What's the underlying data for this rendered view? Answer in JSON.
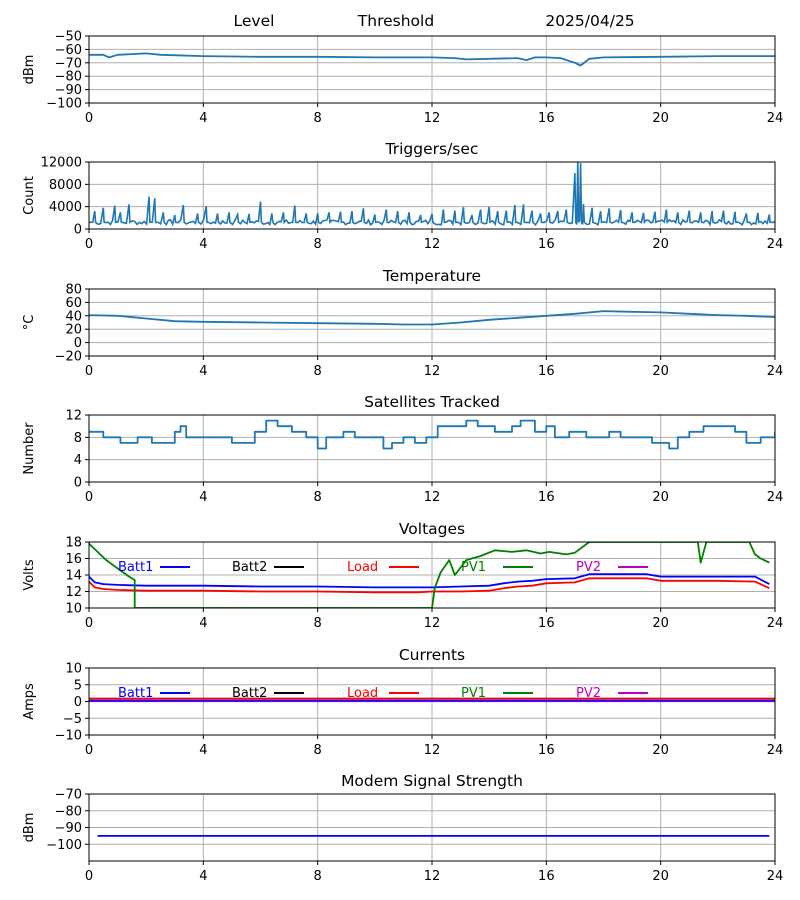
{
  "header": {
    "left": "Level",
    "middle": "Threshold",
    "right": "2025/04/25"
  },
  "colors": {
    "default_line": "#1f77b4",
    "grid": "#b0b0b0",
    "Batt1": "#0000ff",
    "Batt2": "#000000",
    "Load": "#ff0000",
    "PV1": "#008000",
    "PV2": "#bf00bf"
  },
  "chart_data": [
    {
      "id": "level",
      "type": "line",
      "title": "",
      "ylabel": "dBm",
      "xlim": [
        0,
        24
      ],
      "ylim": [
        -100,
        -50
      ],
      "xticks": [
        0,
        4,
        8,
        12,
        16,
        20,
        24
      ],
      "yticks": [
        -100,
        -90,
        -80,
        -70,
        -60,
        -50
      ],
      "series": [
        {
          "color_key": "default_line",
          "x": [
            0,
            0.5,
            0.7,
            1.0,
            2.0,
            2.5,
            4,
            6,
            8,
            10,
            12,
            12.8,
            13.2,
            14,
            15,
            15.3,
            15.6,
            16,
            16.5,
            17.0,
            17.2,
            17.5,
            18,
            20,
            22,
            24
          ],
          "y": [
            -64,
            -64,
            -66,
            -64,
            -63,
            -64,
            -65,
            -65.5,
            -65.5,
            -66,
            -66,
            -66.5,
            -67.5,
            -67,
            -66.5,
            -68,
            -66,
            -66,
            -66.5,
            -70,
            -72,
            -67,
            -66,
            -65.5,
            -65,
            -65
          ]
        }
      ]
    },
    {
      "id": "triggers",
      "type": "line",
      "title": "Triggers/sec",
      "ylabel": "Count",
      "xlim": [
        0,
        24
      ],
      "ylim": [
        0,
        12000
      ],
      "xticks": [
        0,
        4,
        8,
        12,
        16,
        20,
        24
      ],
      "yticks": [
        0,
        4000,
        8000,
        12000
      ],
      "baseline": 1200,
      "series": [
        {
          "color_key": "default_line",
          "x": [
            0.2,
            0.5,
            0.9,
            1.1,
            1.4,
            2.1,
            2.3,
            2.6,
            3.0,
            3.3,
            3.8,
            4.1,
            4.5,
            4.9,
            5.2,
            5.6,
            6.0,
            6.4,
            6.8,
            7.2,
            7.6,
            8.0,
            8.4,
            8.8,
            9.2,
            9.6,
            10.0,
            10.4,
            10.8,
            11.2,
            11.6,
            12.0,
            12.4,
            12.8,
            13.1,
            13.4,
            13.7,
            14.0,
            14.3,
            14.6,
            14.9,
            15.2,
            15.5,
            15.8,
            16.1,
            16.4,
            16.7,
            17.0,
            17.1,
            17.2,
            17.3,
            17.6,
            17.9,
            18.2,
            18.6,
            19.0,
            19.4,
            19.8,
            20.2,
            20.6,
            21.0,
            21.4,
            21.8,
            22.2,
            22.6,
            23.0,
            23.4,
            23.8
          ],
          "y": [
            3200,
            3800,
            4200,
            3000,
            4400,
            5800,
            5500,
            3000,
            2500,
            4300,
            2800,
            4100,
            2800,
            3000,
            2600,
            2700,
            4900,
            2800,
            3000,
            4200,
            2800,
            2800,
            3000,
            3100,
            3200,
            3700,
            2600,
            3500,
            3200,
            3000,
            2500,
            2700,
            3500,
            3300,
            3900,
            2500,
            3500,
            4000,
            3200,
            3300,
            4300,
            4400,
            3300,
            2800,
            3000,
            3200,
            3500,
            10000,
            12500,
            11800,
            4500,
            3800,
            3200,
            3700,
            3400,
            3000,
            2900,
            3100,
            3500,
            3000,
            3300,
            3000,
            3200,
            3300,
            3100,
            2800,
            2900,
            2600
          ]
        }
      ]
    },
    {
      "id": "temperature",
      "type": "line",
      "title": "Temperature",
      "ylabel": "°C",
      "xlim": [
        0,
        24
      ],
      "ylim": [
        -20,
        80
      ],
      "xticks": [
        0,
        4,
        8,
        12,
        16,
        20,
        24
      ],
      "yticks": [
        -20,
        0,
        20,
        40,
        60,
        80
      ],
      "series": [
        {
          "color_key": "default_line",
          "x": [
            0,
            1,
            2,
            3,
            4,
            6,
            8,
            10,
            11,
            12,
            13,
            14,
            15,
            16,
            17,
            18,
            19,
            20,
            21,
            22,
            23,
            24
          ],
          "y": [
            41,
            40,
            36,
            32,
            31,
            30,
            29,
            28,
            27,
            27,
            30,
            34,
            37,
            40,
            43,
            47,
            46,
            45,
            43,
            41,
            40,
            38
          ]
        }
      ]
    },
    {
      "id": "satellites",
      "type": "line",
      "title": "Satellites Tracked",
      "ylabel": "Number",
      "xlim": [
        0,
        24
      ],
      "ylim": [
        0,
        12
      ],
      "xticks": [
        0,
        4,
        8,
        12,
        16,
        20,
        24
      ],
      "yticks": [
        0,
        4,
        8,
        12
      ],
      "step": true,
      "series": [
        {
          "color_key": "default_line",
          "x": [
            0,
            0.5,
            1.1,
            1.7,
            2.2,
            3.0,
            3.2,
            3.4,
            4.0,
            5.0,
            5.8,
            6.2,
            6.6,
            7.1,
            7.6,
            8.0,
            8.3,
            8.9,
            9.3,
            10.0,
            10.3,
            10.6,
            11.0,
            11.4,
            11.8,
            12.2,
            12.7,
            13.2,
            13.6,
            14.2,
            14.8,
            15.1,
            15.6,
            16.0,
            16.3,
            16.8,
            17.4,
            18.2,
            18.6,
            19.0,
            19.7,
            20.3,
            20.6,
            21.0,
            21.5,
            22.1,
            22.6,
            23.0,
            23.5,
            24.0
          ],
          "y": [
            9,
            8,
            7,
            8,
            7,
            9,
            10,
            8,
            8,
            7,
            9,
            11,
            10,
            9,
            8,
            6,
            8,
            9,
            8,
            8,
            6,
            7,
            8,
            7,
            8,
            10,
            10,
            11,
            10,
            9,
            10,
            11,
            9,
            10,
            8,
            9,
            8,
            9,
            8,
            8,
            7,
            6,
            8,
            9,
            10,
            10,
            9,
            7,
            8,
            9
          ]
        }
      ]
    },
    {
      "id": "voltages",
      "type": "line",
      "title": "Voltages",
      "ylabel": "Volts",
      "xlim": [
        0,
        24
      ],
      "ylim": [
        10,
        18
      ],
      "xticks": [
        0,
        4,
        8,
        12,
        16,
        20,
        24
      ],
      "yticks": [
        10,
        12,
        14,
        16,
        18
      ],
      "legend": [
        "Batt1",
        "Batt2",
        "Load",
        "PV1",
        "PV2"
      ],
      "series": [
        {
          "name": "Batt1",
          "color_key": "Batt1",
          "x": [
            0,
            0.2,
            0.5,
            1,
            2,
            4,
            6,
            8,
            10,
            12,
            13,
            14,
            14.5,
            15,
            15.5,
            16,
            17,
            17.5,
            19,
            19.5,
            20,
            22,
            23.3,
            23.8
          ],
          "y": [
            13.8,
            13.1,
            12.9,
            12.8,
            12.7,
            12.7,
            12.6,
            12.6,
            12.5,
            12.5,
            12.6,
            12.7,
            13.0,
            13.2,
            13.3,
            13.5,
            13.6,
            14.1,
            14.1,
            14.1,
            13.8,
            13.8,
            13.8,
            12.9
          ]
        },
        {
          "name": "Load",
          "color_key": "Load",
          "x": [
            0,
            0.2,
            0.5,
            1,
            2,
            4,
            6,
            8,
            10,
            11.5,
            12,
            13,
            14,
            14.5,
            15,
            15.5,
            16,
            17,
            17.5,
            19,
            19.5,
            20,
            22,
            23.3,
            23.8
          ],
          "y": [
            13.2,
            12.5,
            12.3,
            12.2,
            12.1,
            12.1,
            12.0,
            12.0,
            11.9,
            11.9,
            12.0,
            12.0,
            12.1,
            12.4,
            12.6,
            12.7,
            13.0,
            13.1,
            13.6,
            13.6,
            13.6,
            13.3,
            13.3,
            13.2,
            12.4
          ]
        },
        {
          "name": "PV1",
          "color_key": "PV1",
          "x": [
            0,
            0.3,
            0.6,
            1.0,
            1.4,
            1.6,
            1.6,
            12.0,
            12.1,
            12.3,
            12.6,
            12.8,
            13.2,
            13.7,
            14.2,
            14.8,
            15.3,
            15.8,
            16.1,
            16.7,
            17.0,
            17.5,
            21.3,
            21.4,
            21.6,
            23.1,
            23.3,
            23.5,
            23.8
          ],
          "y": [
            17.8,
            16.8,
            15.8,
            14.8,
            13.8,
            13.4,
            10.0,
            10.0,
            12.5,
            14.3,
            15.8,
            14.0,
            15.8,
            16.3,
            17.0,
            16.8,
            17.0,
            16.6,
            16.8,
            16.5,
            16.7,
            18.0,
            18.0,
            15.5,
            18.0,
            18.0,
            16.5,
            16.0,
            15.5
          ]
        }
      ]
    },
    {
      "id": "currents",
      "type": "line",
      "title": "Currents",
      "ylabel": "Amps",
      "xlim": [
        0,
        24
      ],
      "ylim": [
        -10,
        10
      ],
      "xticks": [
        0,
        4,
        8,
        12,
        16,
        20,
        24
      ],
      "yticks": [
        -10,
        -5,
        0,
        5,
        10
      ],
      "legend": [
        "Batt1",
        "Batt2",
        "Load",
        "PV1",
        "PV2"
      ],
      "series": [
        {
          "name": "PV2",
          "color_key": "PV2",
          "x": [
            0,
            24
          ],
          "y": [
            0.1,
            0.1
          ]
        },
        {
          "name": "Batt1",
          "color_key": "Batt1",
          "x": [
            0,
            24
          ],
          "y": [
            0.3,
            0.3
          ]
        },
        {
          "name": "Load",
          "color_key": "Load",
          "x": [
            0,
            24
          ],
          "y": [
            0.9,
            0.9
          ]
        }
      ]
    },
    {
      "id": "modem",
      "type": "line",
      "title": "Modem Signal Strength",
      "ylabel": "dBm",
      "xlim": [
        0,
        24
      ],
      "ylim": [
        -110,
        -70
      ],
      "xticks": [
        0,
        4,
        8,
        12,
        16,
        20,
        24
      ],
      "yticks": [
        -100,
        -90,
        -80,
        -70
      ],
      "series": [
        {
          "color_key": "Batt1",
          "x": [
            0.3,
            23.8
          ],
          "y": [
            -95,
            -95
          ]
        }
      ]
    }
  ]
}
